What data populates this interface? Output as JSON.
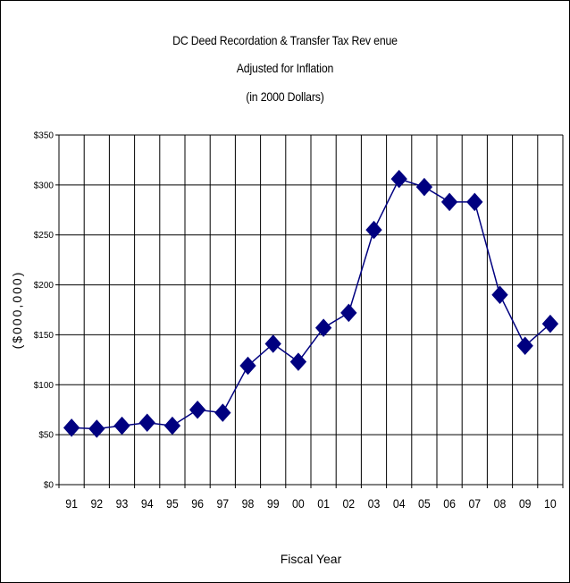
{
  "chart_data": {
    "type": "line",
    "title_lines": [
      "DC  Deed Recordation & Transfer Tax Rev enue",
      "Adjusted for Inflation",
      "(in 2000 Dollars)"
    ],
    "xlabel": "Fiscal Year",
    "ylabel": "($000,000)",
    "categories": [
      "91",
      "92",
      "93",
      "94",
      "95",
      "96",
      "97",
      "98",
      "99",
      "00",
      "01",
      "02",
      "03",
      "04",
      "05",
      "06",
      "07",
      "08",
      "09",
      "10"
    ],
    "series": [
      {
        "values": [
          57,
          56,
          59,
          62,
          59,
          75,
          72,
          119,
          141,
          123,
          157,
          172,
          255,
          306,
          298,
          283,
          283,
          190,
          139,
          161
        ],
        "color": "#000080",
        "marker": "diamond"
      }
    ],
    "ylim": [
      0,
      350
    ],
    "y_ticks": [
      "$0",
      "$50",
      "$100",
      "$150",
      "$200",
      "$250",
      "$300",
      "$350"
    ],
    "grid": true
  }
}
